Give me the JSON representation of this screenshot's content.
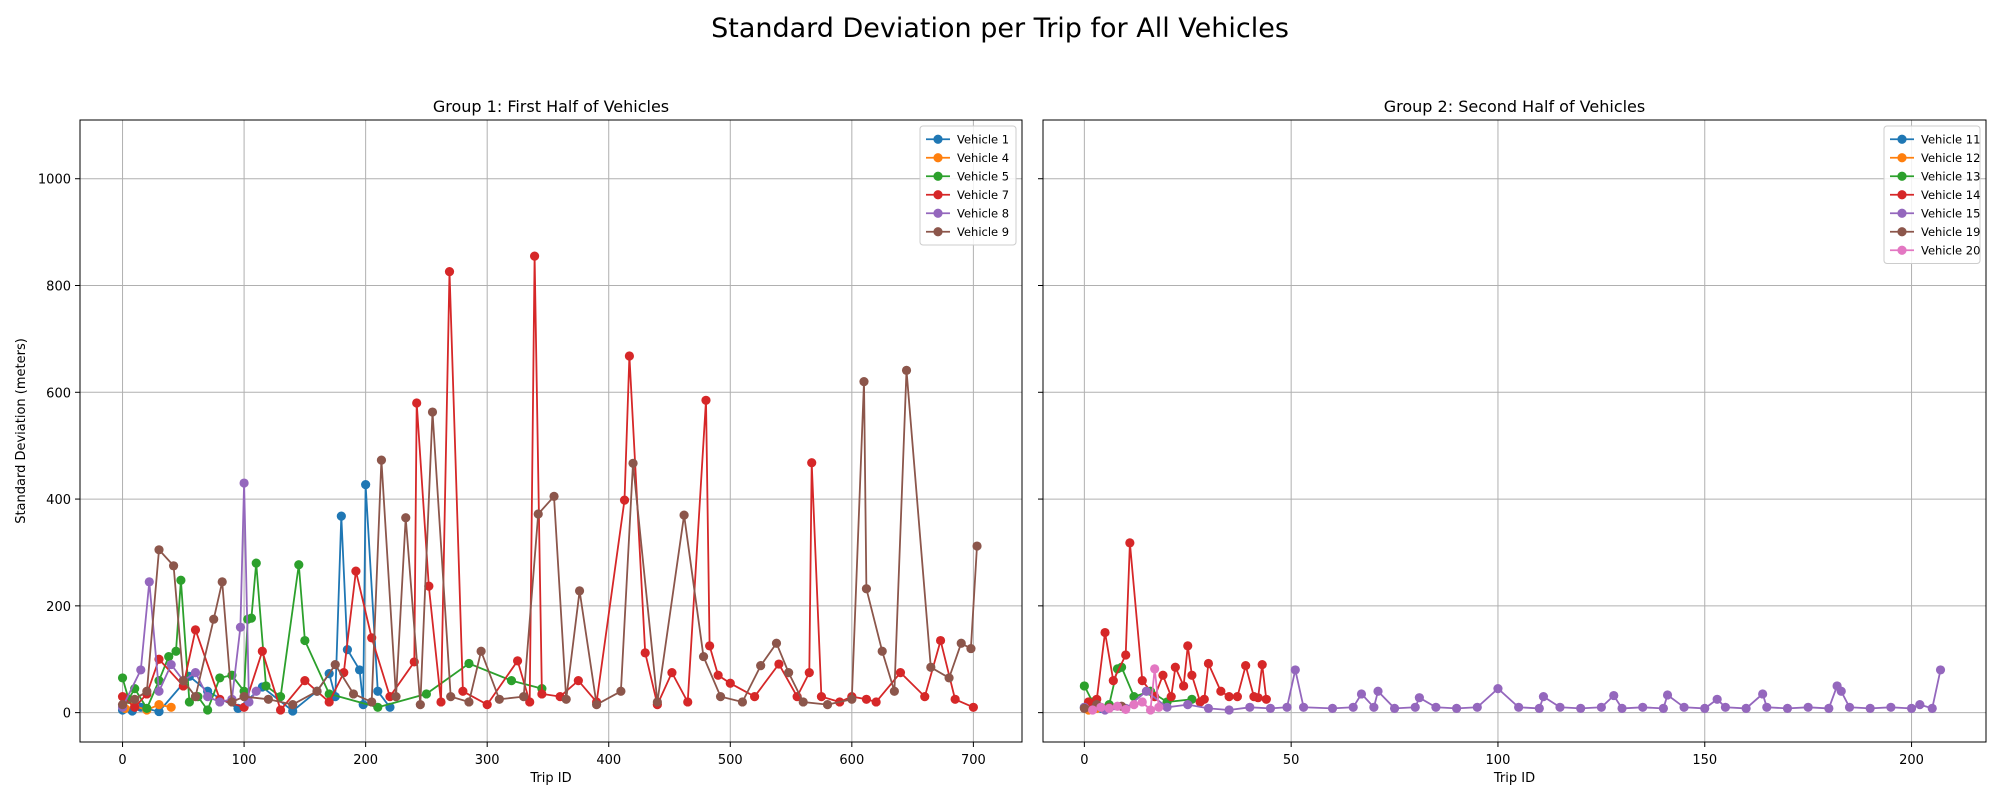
{
  "suptitle": "Standard Deviation per Trip for All Vehicles",
  "chart_data": [
    {
      "type": "line",
      "title": "Group 1: First Half of Vehicles",
      "xlabel": "Trip ID",
      "ylabel": "Standard Deviation (meters)",
      "xlim": [
        -35,
        740
      ],
      "ylim": [
        -55,
        1110
      ],
      "xticks": [
        0,
        100,
        200,
        300,
        400,
        500,
        600,
        700
      ],
      "yticks": [
        0,
        200,
        400,
        600,
        800,
        1000
      ],
      "grid": true,
      "legend": "top-right",
      "markers": true,
      "series": [
        {
          "name": "Vehicle 1",
          "color": "#1f77b4",
          "x": [
            0,
            8,
            15,
            30,
            55,
            70,
            95,
            115,
            140,
            160,
            170,
            175,
            180,
            185,
            195,
            198,
            200,
            210,
            220
          ],
          "y": [
            5,
            3,
            10,
            2,
            68,
            40,
            8,
            48,
            3,
            40,
            73,
            30,
            368,
            118,
            80,
            15,
            427,
            40,
            10
          ]
        },
        {
          "name": "Vehicle 4",
          "color": "#ff7f0e",
          "x": [
            2,
            10,
            20,
            30,
            40
          ],
          "y": [
            8,
            12,
            5,
            15,
            10
          ]
        },
        {
          "name": "Vehicle 5",
          "color": "#2ca02c",
          "x": [
            0,
            5,
            10,
            20,
            30,
            38,
            44,
            48,
            55,
            62,
            70,
            80,
            90,
            100,
            103,
            106,
            110,
            118,
            130,
            145,
            150,
            170,
            210,
            250,
            285,
            320,
            345
          ],
          "y": [
            65,
            25,
            45,
            8,
            60,
            105,
            115,
            248,
            20,
            30,
            5,
            65,
            70,
            40,
            175,
            177,
            280,
            50,
            30,
            277,
            135,
            35,
            10,
            35,
            92,
            60,
            45
          ]
        },
        {
          "name": "Vehicle 7",
          "color": "#d62728",
          "x": [
            0,
            10,
            20,
            30,
            50,
            60,
            80,
            100,
            115,
            130,
            150,
            170,
            182,
            192,
            205,
            220,
            240,
            242,
            252,
            262,
            269,
            280,
            300,
            325,
            335,
            339,
            345,
            360,
            375,
            390,
            413,
            417,
            430,
            440,
            452,
            465,
            480,
            483,
            490,
            500,
            520,
            540,
            555,
            565,
            567,
            575,
            590,
            600,
            612,
            620,
            640,
            660,
            673,
            685,
            700
          ],
          "y": [
            30,
            10,
            35,
            100,
            50,
            155,
            25,
            10,
            115,
            5,
            60,
            20,
            75,
            265,
            140,
            30,
            95,
            580,
            237,
            20,
            826,
            40,
            15,
            97,
            20,
            855,
            35,
            30,
            60,
            20,
            398,
            668,
            112,
            15,
            75,
            20,
            585,
            125,
            70,
            55,
            30,
            91,
            30,
            75,
            468,
            30,
            20,
            30,
            25,
            20,
            75,
            30,
            135,
            25,
            10
          ]
        },
        {
          "name": "Vehicle 8",
          "color": "#9467bd",
          "x": [
            0,
            15,
            22,
            30,
            40,
            50,
            60,
            70,
            80,
            90,
            97,
            100,
            104,
            110
          ],
          "y": [
            10,
            80,
            245,
            40,
            90,
            60,
            75,
            30,
            20,
            25,
            160,
            430,
            20,
            40
          ]
        },
        {
          "name": "Vehicle 9",
          "color": "#8c564b",
          "x": [
            0,
            10,
            20,
            30,
            42,
            50,
            60,
            75,
            82,
            90,
            100,
            120,
            140,
            160,
            175,
            190,
            205,
            213,
            225,
            233,
            245,
            255,
            270,
            285,
            295,
            310,
            330,
            342,
            355,
            365,
            376,
            390,
            410,
            420,
            440,
            462,
            478,
            492,
            510,
            525,
            538,
            548,
            560,
            580,
            600,
            610,
            612,
            625,
            635,
            645,
            665,
            680,
            690,
            698,
            703
          ],
          "y": [
            15,
            25,
            40,
            305,
            275,
            60,
            30,
            175,
            245,
            20,
            30,
            25,
            15,
            40,
            90,
            35,
            20,
            473,
            30,
            365,
            15,
            563,
            30,
            20,
            115,
            25,
            30,
            372,
            405,
            25,
            228,
            15,
            40,
            467,
            20,
            370,
            105,
            30,
            20,
            88,
            130,
            75,
            20,
            15,
            25,
            620,
            232,
            115,
            40,
            641,
            85,
            65,
            130,
            120,
            312
          ]
        }
      ]
    },
    {
      "type": "line",
      "title": "Group 2: Second Half of Vehicles",
      "xlabel": "Trip ID",
      "ylim": [
        -55,
        1110
      ],
      "xlim": [
        -10,
        218
      ],
      "xticks": [
        0,
        50,
        100,
        150,
        200
      ],
      "yticks": [
        0,
        200,
        400,
        600,
        800,
        1000
      ],
      "grid": true,
      "legend": "top-right",
      "markers": true,
      "series": [
        {
          "name": "Vehicle 11",
          "color": "#1f77b4",
          "x": [
            0,
            2,
            4,
            6
          ],
          "y": [
            10,
            15,
            8,
            12
          ]
        },
        {
          "name": "Vehicle 12",
          "color": "#ff7f0e",
          "x": [
            1,
            3,
            5
          ],
          "y": [
            5,
            8,
            6
          ]
        },
        {
          "name": "Vehicle 13",
          "color": "#2ca02c",
          "x": [
            0,
            2,
            4,
            6,
            8,
            9,
            12,
            16,
            20,
            26
          ],
          "y": [
            50,
            20,
            10,
            15,
            82,
            85,
            30,
            40,
            20,
            25
          ]
        },
        {
          "name": "Vehicle 14",
          "color": "#d62728",
          "x": [
            1,
            3,
            5,
            7,
            10,
            11,
            14,
            17,
            19,
            21,
            22,
            24,
            25,
            26,
            28,
            29,
            30,
            33,
            35,
            37,
            39,
            41,
            42,
            43,
            44
          ],
          "y": [
            20,
            25,
            150,
            60,
            108,
            318,
            60,
            30,
            70,
            30,
            85,
            50,
            125,
            70,
            20,
            25,
            92,
            40,
            30,
            30,
            88,
            30,
            28,
            90,
            25
          ]
        },
        {
          "name": "Vehicle 15",
          "color": "#9467bd",
          "x": [
            0,
            5,
            10,
            15,
            20,
            25,
            30,
            35,
            40,
            45,
            49,
            51,
            53,
            60,
            65,
            67,
            70,
            71,
            75,
            80,
            81,
            85,
            90,
            95,
            100,
            105,
            110,
            111,
            115,
            120,
            125,
            128,
            130,
            135,
            140,
            141,
            145,
            150,
            153,
            155,
            160,
            164,
            165,
            170,
            175,
            180,
            182,
            183,
            185,
            190,
            195,
            200,
            202,
            205,
            207
          ],
          "y": [
            10,
            5,
            8,
            40,
            10,
            15,
            8,
            5,
            10,
            8,
            10,
            80,
            10,
            8,
            10,
            35,
            10,
            40,
            8,
            10,
            28,
            10,
            8,
            10,
            45,
            10,
            8,
            30,
            10,
            8,
            10,
            32,
            8,
            10,
            8,
            33,
            10,
            8,
            25,
            10,
            8,
            35,
            10,
            8,
            10,
            8,
            50,
            40,
            10,
            8,
            10,
            8,
            15,
            8,
            80
          ]
        },
        {
          "name": "Vehicle 19",
          "color": "#8c564b",
          "x": [
            0,
            3,
            6,
            9
          ],
          "y": [
            8,
            15,
            10,
            12
          ]
        },
        {
          "name": "Vehicle 20",
          "color": "#e377c2",
          "x": [
            2,
            4,
            6,
            8,
            10,
            12,
            14,
            16,
            17,
            18
          ],
          "y": [
            5,
            10,
            8,
            12,
            6,
            15,
            20,
            5,
            82,
            10
          ]
        }
      ]
    }
  ]
}
